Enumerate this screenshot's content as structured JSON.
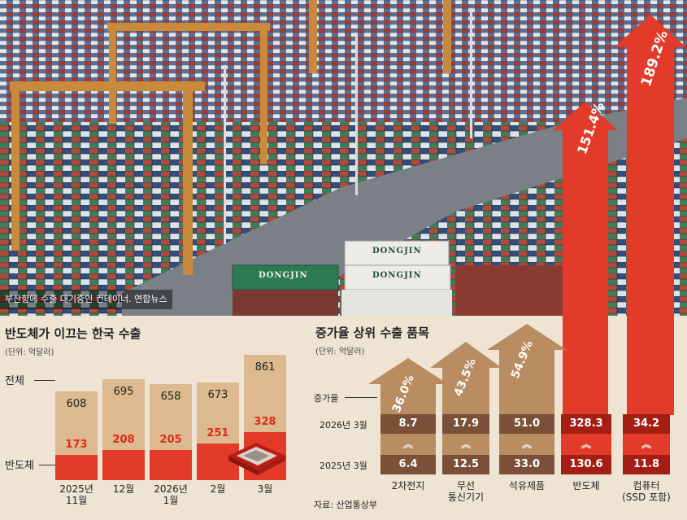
{
  "photo": {
    "caption": "부산항에 수출 대기중인 컨테이너. 연합뉴스",
    "container_labels": [
      "DONGJIN",
      "DONGJIN",
      "DONGJIN"
    ]
  },
  "left_chart": {
    "title": "반도체가 이끄는 한국 수출",
    "unit": "(단위: 억달러)",
    "row_label_total": "전체",
    "row_label_semi": "반도체",
    "colors": {
      "total": "#dcb98e",
      "semi": "#e33b2a"
    }
  },
  "right_chart": {
    "title": "증가율 상위 수출 품목",
    "unit": "(단위: 억달러)",
    "label_growth": "증가율",
    "label_2026": "2026년 3월",
    "label_2025": "2025년 3월",
    "source": "자료: 산업통상부",
    "colors": {
      "tan": "#b98c62",
      "brown": "#7a5138",
      "red": "#e33b2a",
      "darkred": "#a51e14"
    }
  },
  "chart_data": [
    {
      "type": "bar",
      "title": "반도체가 이끄는 한국 수출",
      "unit": "(단위: 억달러)",
      "categories": [
        "2025년\n11월",
        "12월",
        "2026년\n1월",
        "2월",
        "3월"
      ],
      "series": [
        {
          "name": "전체",
          "values": [
            608,
            695,
            658,
            673,
            861
          ]
        },
        {
          "name": "반도체",
          "values": [
            173,
            208,
            205,
            251,
            328
          ]
        }
      ]
    },
    {
      "type": "table",
      "title": "증가율 상위 수출 품목",
      "unit": "(단위: 억달러)",
      "categories": [
        "2차전지",
        "무선\n통신기기",
        "석유제품",
        "반도체",
        "컴퓨터\n(SSD 포함)"
      ],
      "growth_pct_labels": [
        "36.0%",
        "43.5%",
        "54.9%",
        "151.4%",
        "189.2%"
      ],
      "series": [
        {
          "name": "2026년 3월",
          "values": [
            "8.7",
            "17.9",
            "51.0",
            "328.3",
            "34.2"
          ]
        },
        {
          "name": "2025년 3월",
          "values": [
            "6.4",
            "12.5",
            "33.0",
            "130.6",
            "11.8"
          ]
        }
      ]
    }
  ]
}
